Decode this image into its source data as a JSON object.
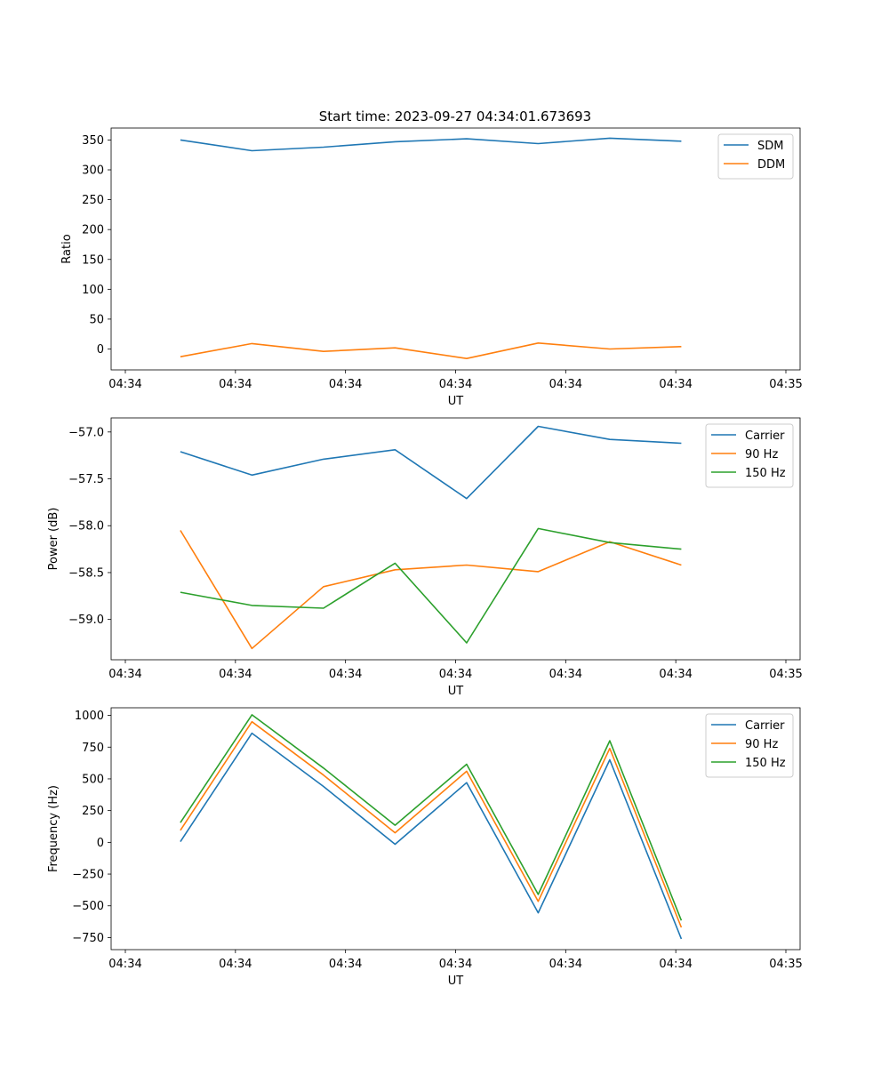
{
  "figure_title": "Start time: 2023-09-27 04:34:01.673693",
  "chart_data": [
    {
      "type": "line",
      "title": "Start time: 2023-09-27 04:34:01.673693",
      "xlabel": "UT",
      "ylabel": "Ratio",
      "x": [
        0.5,
        1.15,
        1.8,
        2.45,
        3.1,
        3.75,
        4.4,
        5.05
      ],
      "xlim": [
        0,
        6.0
      ],
      "xtick_values": [
        0,
        1,
        2,
        3,
        4,
        5,
        6
      ],
      "xtick_labels": [
        "04:34",
        "04:34",
        "04:34",
        "04:34",
        "04:34",
        "04:34",
        "04:35"
      ],
      "ylim": [
        -35,
        370
      ],
      "ytick_values": [
        0,
        50,
        100,
        150,
        200,
        250,
        300,
        350
      ],
      "ytick_labels": [
        "0",
        "50",
        "100",
        "150",
        "200",
        "250",
        "300",
        "350"
      ],
      "legend_location": "upper right",
      "series": [
        {
          "name": "SDM",
          "color": "#1f77b4",
          "values": [
            350,
            332,
            338,
            347,
            352,
            344,
            353,
            348
          ]
        },
        {
          "name": "DDM",
          "color": "#ff7f0e",
          "values": [
            -13,
            9,
            -4,
            2,
            -16,
            10,
            0,
            4
          ]
        }
      ]
    },
    {
      "type": "line",
      "title": "",
      "xlabel": "UT",
      "ylabel": "Power (dB)",
      "x": [
        0.5,
        1.15,
        1.8,
        2.45,
        3.1,
        3.75,
        4.4,
        5.05
      ],
      "xlim": [
        0,
        6.0
      ],
      "xtick_values": [
        0,
        1,
        2,
        3,
        4,
        5,
        6
      ],
      "xtick_labels": [
        "04:34",
        "04:34",
        "04:34",
        "04:34",
        "04:34",
        "04:34",
        "04:35"
      ],
      "ylim": [
        -59.43,
        -56.85
      ],
      "ytick_values": [
        -57.0,
        -57.5,
        -58.0,
        -58.5,
        -59.0
      ],
      "ytick_labels": [
        "−57.0",
        "−57.5",
        "−58.0",
        "−58.5",
        "−59.0"
      ],
      "legend_location": "upper right",
      "series": [
        {
          "name": "Carrier",
          "color": "#1f77b4",
          "values": [
            -57.21,
            -57.46,
            -57.29,
            -57.19,
            -57.71,
            -56.94,
            -57.08,
            -57.12
          ]
        },
        {
          "name": "90 Hz",
          "color": "#ff7f0e",
          "values": [
            -58.05,
            -59.31,
            -58.65,
            -58.47,
            -58.42,
            -58.49,
            -58.17,
            -58.42
          ]
        },
        {
          "name": "150 Hz",
          "color": "#2ca02c",
          "values": [
            -58.71,
            -58.85,
            -58.88,
            -58.4,
            -59.25,
            -58.03,
            -58.18,
            -58.25
          ]
        }
      ]
    },
    {
      "type": "line",
      "title": "",
      "xlabel": "UT",
      "ylabel": "Frequency (Hz)",
      "x": [
        0.5,
        1.15,
        1.8,
        2.45,
        3.1,
        3.75,
        4.4,
        5.05
      ],
      "xlim": [
        0,
        6.0
      ],
      "xtick_values": [
        0,
        1,
        2,
        3,
        4,
        5,
        6
      ],
      "xtick_labels": [
        "04:34",
        "04:34",
        "04:34",
        "04:34",
        "04:34",
        "04:34",
        "04:35"
      ],
      "ylim": [
        -845,
        1060
      ],
      "ytick_values": [
        1000,
        750,
        500,
        250,
        0,
        -250,
        -500,
        -750
      ],
      "ytick_labels": [
        "1000",
        "750",
        "500",
        "250",
        "0",
        "−250",
        "−500",
        "−750"
      ],
      "legend_location": "upper right",
      "series": [
        {
          "name": "Carrier",
          "color": "#1f77b4",
          "values": [
            5,
            860,
            440,
            -15,
            470,
            -555,
            650,
            -760
          ]
        },
        {
          "name": "90 Hz",
          "color": "#ff7f0e",
          "values": [
            95,
            950,
            530,
            75,
            560,
            -465,
            740,
            -670
          ]
        },
        {
          "name": "150 Hz",
          "color": "#2ca02c",
          "values": [
            155,
            1005,
            585,
            135,
            615,
            -410,
            800,
            -615
          ]
        }
      ]
    }
  ]
}
